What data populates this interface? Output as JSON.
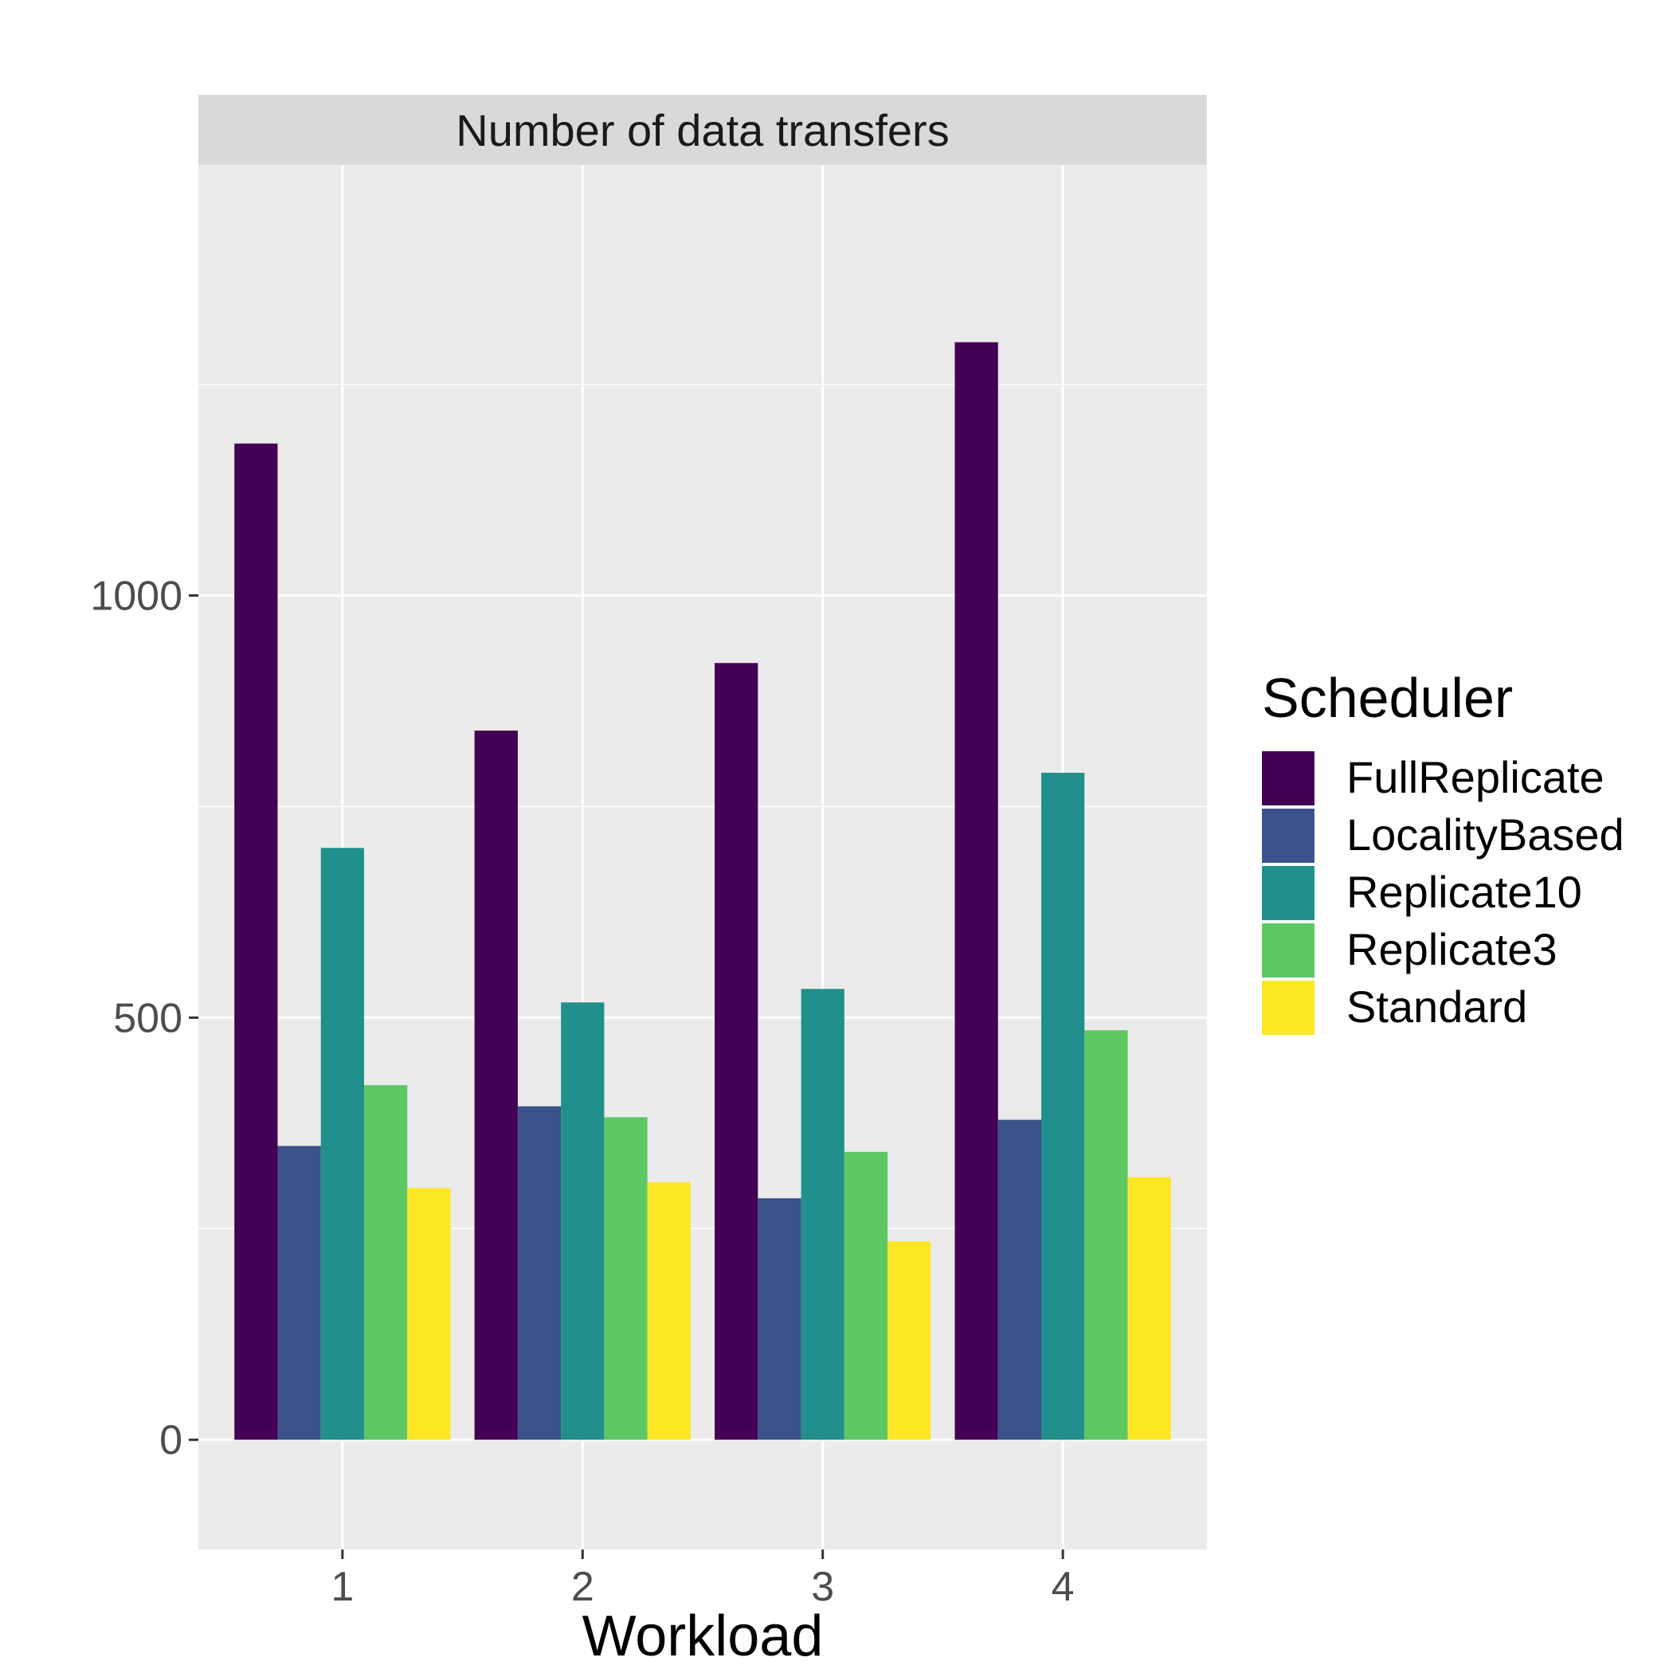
{
  "chart_data": {
    "type": "bar",
    "title": "",
    "facet_label": "Number of data transfers",
    "xlabel": "Workload",
    "ylabel": "",
    "categories": [
      "1",
      "2",
      "3",
      "4"
    ],
    "ylim": [
      -130,
      1510
    ],
    "yticks": [
      0,
      500,
      1000
    ],
    "grid": true,
    "legend_position": "right",
    "legend_title": "Scheduler",
    "series": [
      {
        "name": "FullReplicate",
        "color": "#440154",
        "values": [
          1180,
          840,
          920,
          1300
        ]
      },
      {
        "name": "LocalityBased",
        "color": "#3B528B",
        "values": [
          348,
          395,
          286,
          379
        ]
      },
      {
        "name": "Replicate10",
        "color": "#21908C",
        "values": [
          701,
          518,
          534,
          790
        ]
      },
      {
        "name": "Replicate3",
        "color": "#5DC863",
        "values": [
          420,
          382,
          341,
          485
        ]
      },
      {
        "name": "Standard",
        "color": "#FDE725",
        "values": [
          298,
          305,
          235,
          311
        ]
      }
    ]
  }
}
